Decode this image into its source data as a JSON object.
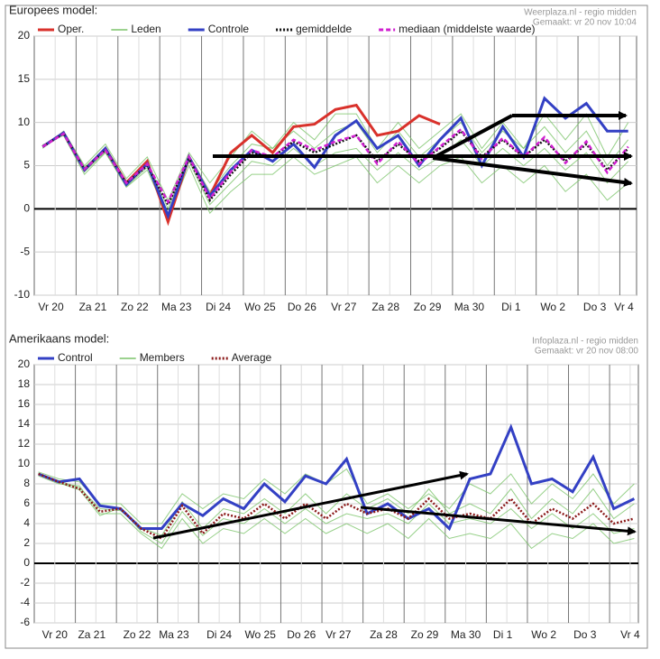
{
  "chart_data": [
    {
      "type": "line",
      "title": "Europees model:",
      "source": "Weerplaza.nl - regio midden",
      "created": "Gemaakt: vr 20 nov 10:04",
      "xlim": [
        0,
        14.4
      ],
      "ylim": [
        -10,
        20
      ],
      "yticks": [
        20,
        15,
        10,
        5,
        0,
        -5,
        -10
      ],
      "grid": true,
      "xticks": [
        {
          "value": 0.4,
          "label": "Vr 20"
        },
        {
          "value": 1.4,
          "label": "Za 21"
        },
        {
          "value": 2.4,
          "label": "Zo 22"
        },
        {
          "value": 3.4,
          "label": "Ma 23"
        },
        {
          "value": 4.4,
          "label": "Di 24"
        },
        {
          "value": 5.4,
          "label": "Wo 25"
        },
        {
          "value": 6.4,
          "label": "Do 26"
        },
        {
          "value": 7.4,
          "label": "Vr 27"
        },
        {
          "value": 8.4,
          "label": "Za 28"
        },
        {
          "value": 9.4,
          "label": "Zo 29"
        },
        {
          "value": 10.4,
          "label": "Ma 30"
        },
        {
          "value": 11.4,
          "label": "Di 1"
        },
        {
          "value": 12.4,
          "label": "Wo 2"
        },
        {
          "value": 13.4,
          "label": "Do 3"
        },
        {
          "value": 14.1,
          "label": "Vr 4"
        }
      ],
      "x": [
        0.2,
        0.7,
        1.2,
        1.7,
        2.2,
        2.7,
        3.2,
        3.7,
        4.2,
        4.7,
        5.2,
        5.7,
        6.2,
        6.7,
        7.2,
        7.7,
        8.2,
        8.7,
        9.2,
        9.7,
        10.2,
        10.7,
        11.2,
        11.7,
        12.2,
        12.7,
        13.2,
        13.7,
        14.2
      ],
      "members": {
        "name": "Leden",
        "color": "#7cc46a",
        "runs": [
          [
            7,
            9,
            5,
            7.5,
            3.5,
            6,
            1,
            6.5,
            3,
            6,
            9,
            7,
            10,
            8,
            11,
            11,
            7,
            10,
            7,
            9,
            11,
            7,
            10,
            7,
            11,
            8,
            11,
            6,
            10
          ],
          [
            7.4,
            8.5,
            4,
            6.5,
            2.5,
            4.5,
            -1,
            5,
            -0.5,
            2,
            4,
            4,
            6,
            4,
            5,
            6,
            3,
            5,
            3,
            5,
            6,
            3,
            5,
            3,
            5,
            2,
            4,
            1,
            3
          ],
          [
            7.1,
            8.9,
            4.8,
            7,
            3.2,
            5.5,
            0,
            6.2,
            2,
            5,
            7.5,
            7,
            9,
            7,
            9,
            10,
            6.5,
            9,
            6,
            8,
            10,
            6.5,
            9,
            7,
            9.5,
            6.5,
            9,
            5,
            8
          ],
          [
            7.3,
            8.6,
            4.3,
            6.6,
            2.6,
            4.8,
            -0.5,
            5.5,
            0.5,
            3,
            5.5,
            5,
            7,
            5,
            6.5,
            7,
            4.5,
            6.5,
            4.5,
            6,
            8,
            5,
            7,
            5,
            7,
            4.5,
            6.5,
            3,
            5.5
          ]
        ]
      },
      "series": [
        {
          "name": "Oper.",
          "color": "#d9312b",
          "style": "solid",
          "values": [
            7.2,
            8.8,
            4.5,
            7,
            3,
            5.5,
            -1.5,
            6,
            1.5,
            6.5,
            8.5,
            6.5,
            9.5,
            9.8,
            11.5,
            12,
            8.5,
            9,
            10.8,
            9.8,
            null,
            null,
            null,
            null,
            null,
            null,
            null,
            null,
            null
          ]
        },
        {
          "name": "Controle",
          "color": "#3340c4",
          "style": "solid",
          "values": [
            7.2,
            8.8,
            4.5,
            7,
            2.8,
            5.2,
            -0.8,
            6,
            1.5,
            4.5,
            6.8,
            5.5,
            7.5,
            4.8,
            8.5,
            10.2,
            7,
            8.5,
            5,
            8,
            10.5,
            5,
            9.5,
            6,
            12.8,
            10.5,
            12.2,
            9,
            9
          ]
        },
        {
          "name": "gemiddelde",
          "color": "#111111",
          "style": "dotted",
          "values": [
            7.2,
            8.7,
            4.6,
            6.8,
            3,
            5,
            0.5,
            5.8,
            1,
            4,
            6.5,
            6,
            7.8,
            6.5,
            7.5,
            8.5,
            5.5,
            7.5,
            5.5,
            7,
            9,
            6,
            8,
            6,
            8,
            5.5,
            7.5,
            4.5,
            7
          ]
        },
        {
          "name": "mediaan (middelste waarde)",
          "color": "#d020d0",
          "style": "dashed",
          "values": [
            7.2,
            8.7,
            4.6,
            6.8,
            3,
            5.2,
            0.8,
            6,
            1.2,
            4.3,
            6.8,
            6,
            8,
            6.8,
            7.8,
            8.5,
            5.2,
            7.8,
            5.2,
            7.2,
            9.2,
            5.8,
            8.2,
            6,
            8.3,
            5.3,
            7.8,
            4.2,
            7.2
          ]
        }
      ]
    },
    {
      "type": "line",
      "title": "Amerikaans model:",
      "source": "Infoplaza.nl - regio midden",
      "created": "Gemaakt: vr 20 nov 08:00",
      "xlim": [
        0,
        14.7
      ],
      "ylim": [
        -6,
        20
      ],
      "yticks": [
        20,
        18,
        16,
        14,
        12,
        10,
        8,
        6,
        4,
        2,
        0,
        -2,
        -4,
        -6
      ],
      "grid": true,
      "xticks": [
        {
          "value": 0.5,
          "label": "Vr 20"
        },
        {
          "value": 1.4,
          "label": "Za 21"
        },
        {
          "value": 2.5,
          "label": "Zo 22"
        },
        {
          "value": 3.4,
          "label": "Ma 23"
        },
        {
          "value": 4.5,
          "label": "Di 24"
        },
        {
          "value": 5.5,
          "label": "Wo 25"
        },
        {
          "value": 6.5,
          "label": "Do 26"
        },
        {
          "value": 7.4,
          "label": "Vr 27"
        },
        {
          "value": 8.5,
          "label": "Za 28"
        },
        {
          "value": 9.5,
          "label": "Zo 29"
        },
        {
          "value": 10.5,
          "label": "Ma 30"
        },
        {
          "value": 11.4,
          "label": "Di 1"
        },
        {
          "value": 12.4,
          "label": "Wo 2"
        },
        {
          "value": 13.4,
          "label": "Do 3"
        },
        {
          "value": 14.5,
          "label": "Vr 4"
        }
      ],
      "x": [
        0.1,
        0.6,
        1.1,
        1.6,
        2.1,
        2.6,
        3.1,
        3.6,
        4.1,
        4.6,
        5.1,
        5.6,
        6.1,
        6.6,
        7.1,
        7.6,
        8.1,
        8.6,
        9.1,
        9.6,
        10.1,
        10.6,
        11.1,
        11.6,
        12.1,
        12.6,
        13.1,
        13.6,
        14.1,
        14.6
      ],
      "members": {
        "name": "Members",
        "color": "#7cc46a",
        "runs": [
          [
            9.2,
            8.5,
            8.2,
            6,
            6,
            4,
            4,
            7,
            5.5,
            7,
            6.5,
            8.5,
            7,
            9,
            8,
            9.5,
            6,
            7,
            5.5,
            7,
            5.5,
            8,
            7,
            9,
            6,
            8,
            6.5,
            9,
            6,
            8
          ],
          [
            8.8,
            8,
            7.8,
            5,
            5,
            3,
            1.5,
            4.5,
            2,
            3.5,
            3,
            4.5,
            3,
            4.5,
            3,
            4,
            3,
            4,
            2.5,
            4.5,
            2.5,
            3,
            2.5,
            4,
            1.5,
            3,
            2.5,
            4,
            2,
            2.5
          ],
          [
            9,
            8.3,
            7.6,
            5.5,
            5.3,
            3.6,
            2.8,
            6.2,
            3.5,
            5.5,
            5,
            6.5,
            5,
            7,
            5,
            7,
            5.5,
            6.5,
            5,
            7.5,
            5,
            6,
            5,
            7.5,
            4.5,
            6.5,
            5,
            7.5,
            4.5,
            6
          ],
          [
            9.1,
            8.1,
            7.4,
            4.8,
            5.6,
            3.2,
            2,
            5.2,
            2.8,
            4.5,
            4,
            5.5,
            4,
            5.5,
            4,
            5,
            4.5,
            5,
            4,
            6,
            4,
            4.5,
            4,
            5.5,
            3.5,
            5,
            3.5,
            5,
            3,
            3.5
          ]
        ]
      },
      "series": [
        {
          "name": "Control",
          "color": "#3340c4",
          "style": "solid",
          "values": [
            9,
            8.2,
            8.5,
            5.8,
            5.5,
            3.5,
            3.5,
            6,
            4.8,
            6.5,
            5.5,
            8,
            6.2,
            8.8,
            8,
            10.5,
            5,
            6,
            4.5,
            5.5,
            3.5,
            8.5,
            9,
            13.7,
            8,
            8.5,
            7.2,
            10.7,
            5.5,
            6.5
          ]
        },
        {
          "name": "Average",
          "color": "#8b1a1a",
          "style": "dotted",
          "values": [
            9,
            8.2,
            7.5,
            5.2,
            5.5,
            3.5,
            2.5,
            5.8,
            3,
            5,
            4.5,
            6,
            4.5,
            6,
            4.5,
            6,
            5,
            5.5,
            4.5,
            6.5,
            4.5,
            5,
            4.5,
            6.5,
            4,
            5.5,
            4.5,
            6,
            4,
            4.5
          ]
        }
      ]
    }
  ]
}
